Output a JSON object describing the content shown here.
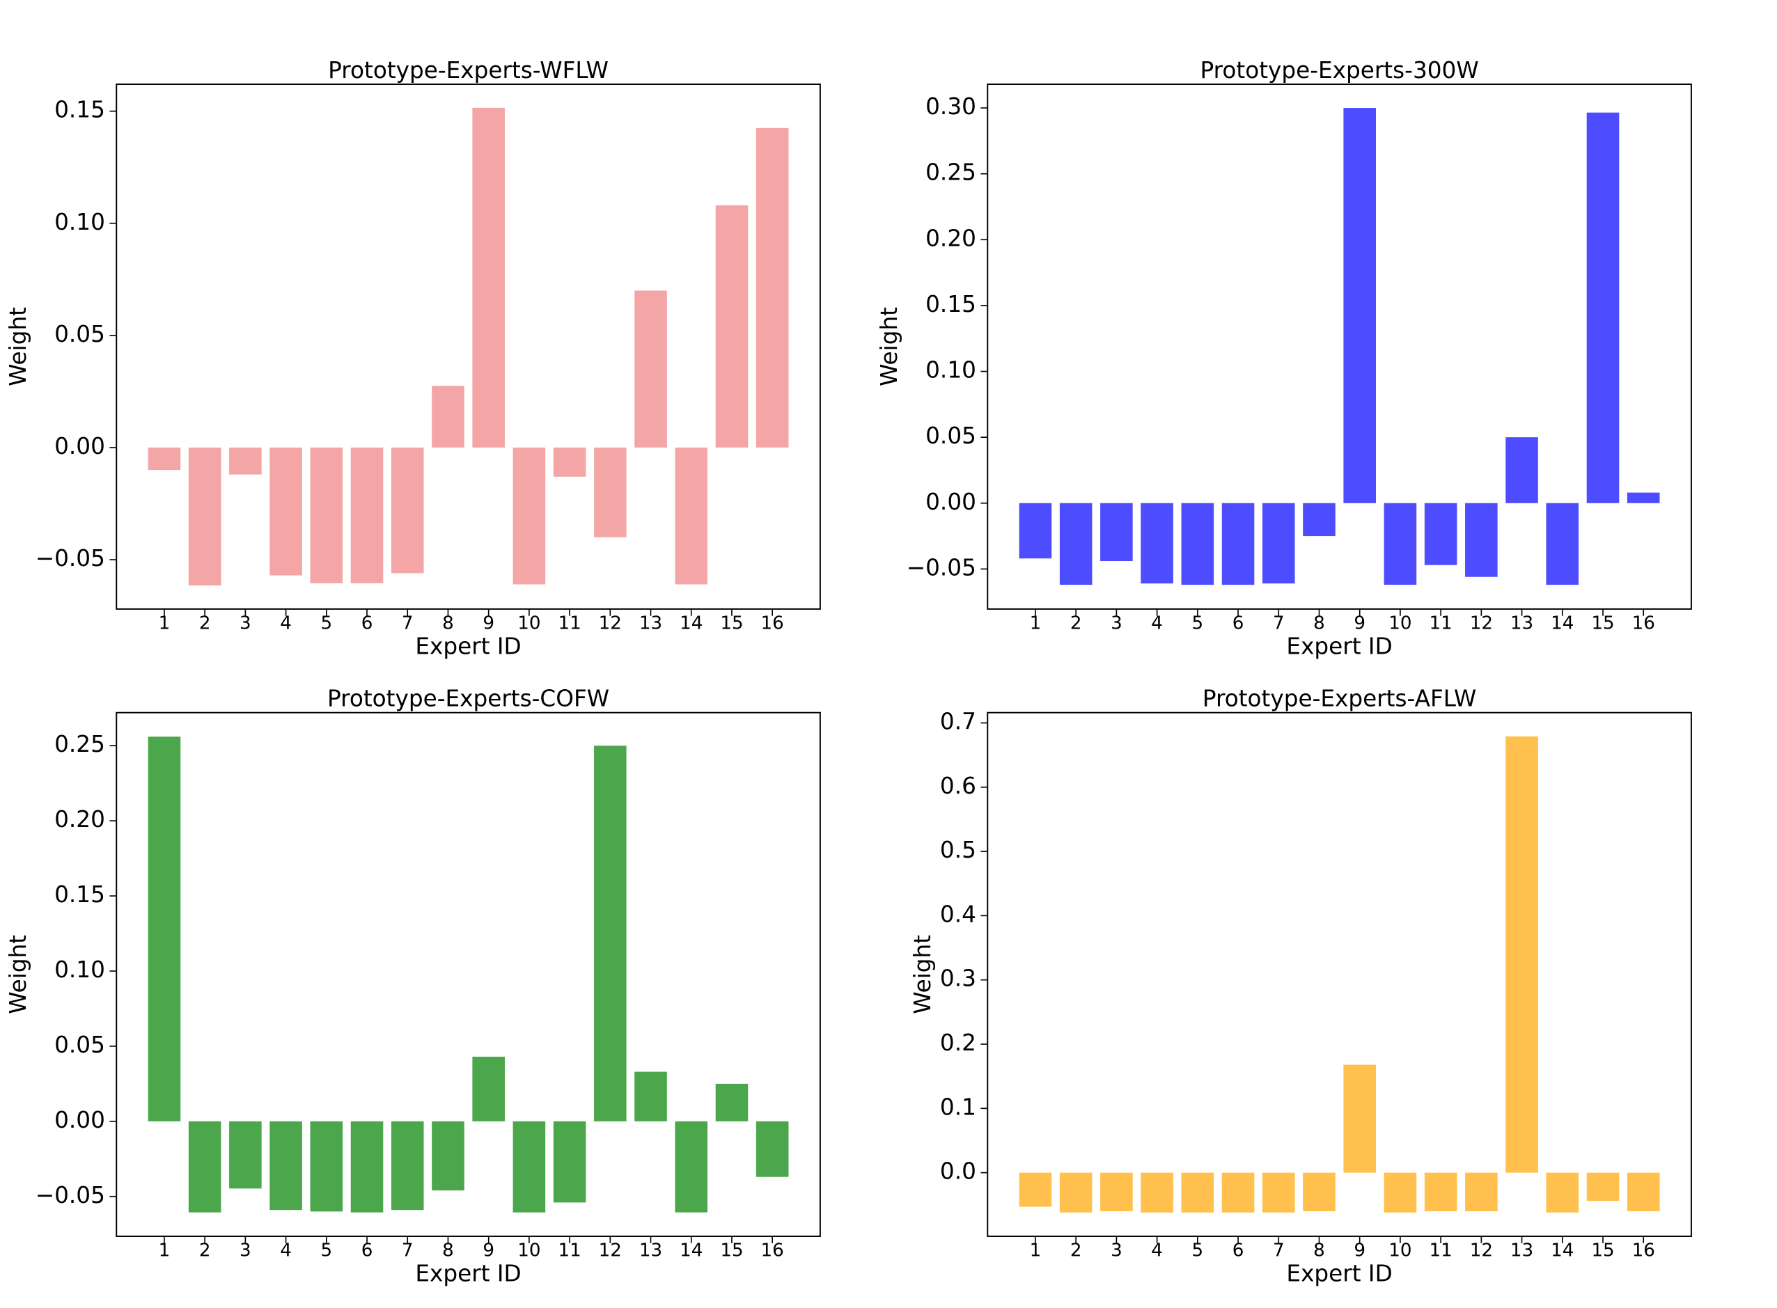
{
  "chart_data": [
    {
      "type": "bar",
      "title": "Prototype-Experts-WFLW",
      "xlabel": "Expert ID",
      "ylabel": "Weight",
      "color": "#f4a6a6",
      "categories": [
        "1",
        "2",
        "3",
        "4",
        "5",
        "6",
        "7",
        "8",
        "9",
        "10",
        "11",
        "12",
        "13",
        "14",
        "15",
        "16"
      ],
      "values": [
        -0.01,
        -0.0615,
        -0.012,
        -0.057,
        -0.0605,
        -0.0605,
        -0.056,
        0.0275,
        0.1515,
        -0.061,
        -0.013,
        -0.04,
        0.07,
        -0.061,
        0.108,
        0.1425
      ],
      "ylim": [
        -0.072,
        0.162
      ],
      "yticks": [
        {
          "value": -0.05,
          "label": "−0.05"
        },
        {
          "value": 0,
          "label": "0.00"
        },
        0.05,
        {
          "value": 0.1,
          "label": "0.10"
        },
        0.15
      ]
    },
    {
      "type": "bar",
      "title": "Prototype-Experts-300W",
      "xlabel": "Expert ID",
      "ylabel": "Weight",
      "color": "#4d4dff",
      "categories": [
        "1",
        "2",
        "3",
        "4",
        "5",
        "6",
        "7",
        "8",
        "9",
        "10",
        "11",
        "12",
        "13",
        "14",
        "15",
        "16"
      ],
      "values": [
        -0.042,
        -0.062,
        -0.044,
        -0.061,
        -0.062,
        -0.062,
        -0.061,
        -0.025,
        0.3,
        -0.062,
        -0.047,
        -0.056,
        0.05,
        -0.062,
        0.2965,
        0.008
      ],
      "ylim": [
        -0.0804,
        0.318
      ],
      "yticks": [
        {
          "value": -0.05,
          "label": "−0.05"
        },
        {
          "value": 0,
          "label": "0.00"
        },
        0.05,
        {
          "value": 0.1,
          "label": "0.10"
        },
        0.15,
        {
          "value": 0.2,
          "label": "0.20"
        },
        0.25,
        {
          "value": 0.3,
          "label": "0.30"
        }
      ]
    },
    {
      "type": "bar",
      "title": "Prototype-Experts-COFW",
      "xlabel": "Expert ID",
      "ylabel": "Weight",
      "color": "#4ca64c",
      "categories": [
        "1",
        "2",
        "3",
        "4",
        "5",
        "6",
        "7",
        "8",
        "9",
        "10",
        "11",
        "12",
        "13",
        "14",
        "15",
        "16"
      ],
      "values": [
        0.256,
        -0.0606,
        -0.0447,
        -0.059,
        -0.06,
        -0.0606,
        -0.059,
        -0.046,
        0.043,
        -0.0606,
        -0.054,
        0.25,
        0.033,
        -0.0606,
        0.025,
        -0.037
      ],
      "ylim": [
        -0.0765,
        0.272
      ],
      "yticks": [
        {
          "value": -0.05,
          "label": "−0.05"
        },
        {
          "value": 0,
          "label": "0.00"
        },
        0.05,
        {
          "value": 0.1,
          "label": "0.10"
        },
        0.15,
        {
          "value": 0.2,
          "label": "0.20"
        },
        0.25
      ]
    },
    {
      "type": "bar",
      "title": "Prototype-Experts-AFLW",
      "xlabel": "Expert ID",
      "ylabel": "Weight",
      "color": "#ffc04d",
      "categories": [
        "1",
        "2",
        "3",
        "4",
        "5",
        "6",
        "7",
        "8",
        "9",
        "10",
        "11",
        "12",
        "13",
        "14",
        "15",
        "16"
      ],
      "values": [
        -0.053,
        -0.062,
        -0.06,
        -0.062,
        -0.062,
        -0.062,
        -0.062,
        -0.06,
        0.168,
        -0.062,
        -0.06,
        -0.06,
        0.679,
        -0.062,
        -0.044,
        -0.06
      ],
      "ylim": [
        -0.099,
        0.716
      ],
      "yticks": [
        {
          "value": 0,
          "label": "0.0"
        },
        0.1,
        0.2,
        0.3,
        0.4,
        0.5,
        0.6,
        0.7
      ]
    }
  ]
}
